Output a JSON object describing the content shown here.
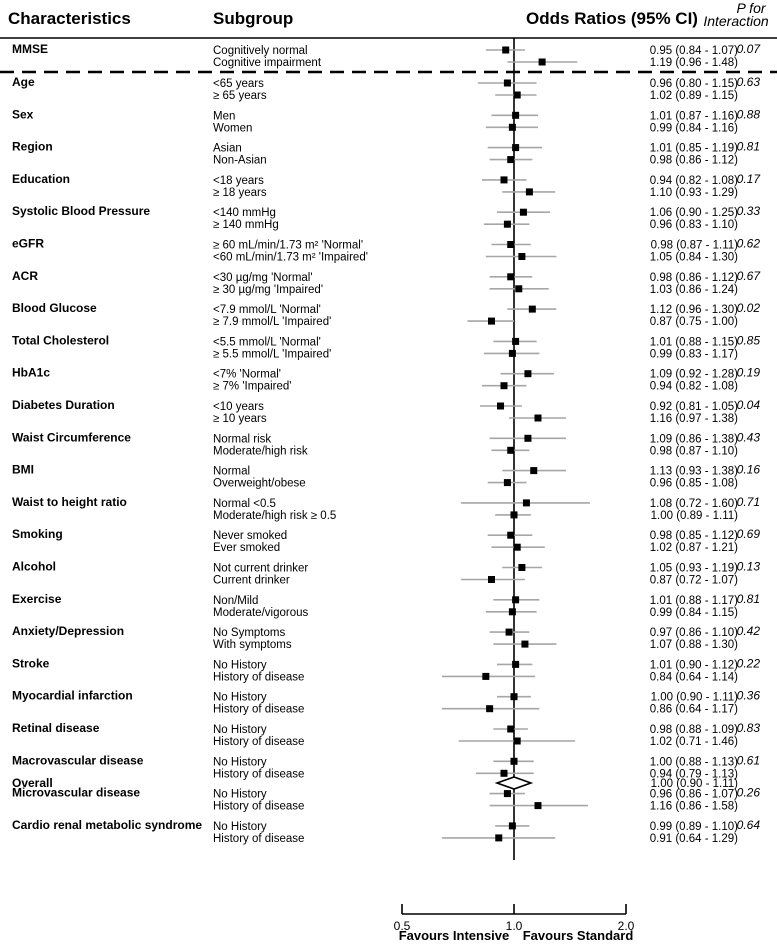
{
  "header": {
    "characteristics": "Characteristics",
    "subgroup": "Subgroup",
    "odds_ratios": "Odds Ratios (95% CI)",
    "p_for": "P for",
    "interaction": "Interaction"
  },
  "chart_data": {
    "type": "forest",
    "title": "",
    "xlabel_left": "Favours Intensive",
    "xlabel_right": "Favours Standard",
    "xlim": [
      0.5,
      2.0
    ],
    "xticks": [
      {
        "value": 0.5,
        "label": "0.5"
      },
      {
        "value": 1.0,
        "label": "1.0"
      },
      {
        "value": 2.0,
        "label": "2.0"
      }
    ],
    "reference_line": 1.0,
    "point_color": "#000000",
    "ci_color": "#a6a6a6",
    "groups": [
      {
        "name": "MMSE",
        "p": "0.07",
        "rows": [
          {
            "label": "Cognitively normal",
            "or": 0.95,
            "lo": 0.84,
            "hi": 1.07,
            "text": "0.95 (0.84 - 1.07)"
          },
          {
            "label": "Cognitive impairment",
            "or": 1.19,
            "lo": 0.96,
            "hi": 1.48,
            "text": "1.19 (0.96 - 1.48)"
          }
        ]
      },
      {
        "name": "Age",
        "p": "0.63",
        "rows": [
          {
            "label": "<65 years",
            "or": 0.96,
            "lo": 0.8,
            "hi": 1.15,
            "text": "0.96 (0.80 - 1.15)"
          },
          {
            "label": "≥ 65 years",
            "or": 1.02,
            "lo": 0.89,
            "hi": 1.15,
            "text": "1.02 (0.89 - 1.15)"
          }
        ]
      },
      {
        "name": "Sex",
        "p": "0.88",
        "rows": [
          {
            "label": "Men",
            "or": 1.01,
            "lo": 0.87,
            "hi": 1.16,
            "text": "1.01 (0.87 - 1.16)"
          },
          {
            "label": "Women",
            "or": 0.99,
            "lo": 0.84,
            "hi": 1.16,
            "text": "0.99 (0.84 - 1.16)"
          }
        ]
      },
      {
        "name": "Region",
        "p": "0.81",
        "rows": [
          {
            "label": "Asian",
            "or": 1.01,
            "lo": 0.85,
            "hi": 1.19,
            "text": "1.01 (0.85 - 1.19)"
          },
          {
            "label": "Non-Asian",
            "or": 0.98,
            "lo": 0.86,
            "hi": 1.12,
            "text": "0.98 (0.86 - 1.12)"
          }
        ]
      },
      {
        "name": "Education",
        "p": "0.17",
        "rows": [
          {
            "label": "<18 years",
            "or": 0.94,
            "lo": 0.82,
            "hi": 1.08,
            "text": "0.94 (0.82 - 1.08)"
          },
          {
            "label": "≥ 18 years",
            "or": 1.1,
            "lo": 0.93,
            "hi": 1.29,
            "text": "1.10 (0.93 - 1.29)"
          }
        ]
      },
      {
        "name": "Systolic Blood Pressure",
        "p": "0.33",
        "rows": [
          {
            "label": "<140 mmHg",
            "or": 1.06,
            "lo": 0.9,
            "hi": 1.25,
            "text": "1.06 (0.90 - 1.25)"
          },
          {
            "label": "≥ 140 mmHg",
            "or": 0.96,
            "lo": 0.83,
            "hi": 1.1,
            "text": "0.96 (0.83 - 1.10)"
          }
        ]
      },
      {
        "name": "eGFR",
        "p": "0.62",
        "rows": [
          {
            "label": "≥ 60 mL/min/1.73 m² 'Normal'",
            "or": 0.98,
            "lo": 0.87,
            "hi": 1.11,
            "text": "0.98 (0.87 - 1.11)"
          },
          {
            "label": "<60 mL/min/1.73 m² 'Impaired'",
            "or": 1.05,
            "lo": 0.84,
            "hi": 1.3,
            "text": "1.05 (0.84 - 1.30)"
          }
        ]
      },
      {
        "name": "ACR",
        "p": "0.67",
        "rows": [
          {
            "label": "<30 µg/mg 'Normal'",
            "or": 0.98,
            "lo": 0.86,
            "hi": 1.12,
            "text": "0.98 (0.86 - 1.12)"
          },
          {
            "label": "≥ 30 µg/mg 'Impaired'",
            "or": 1.03,
            "lo": 0.86,
            "hi": 1.24,
            "text": "1.03 (0.86 - 1.24)"
          }
        ]
      },
      {
        "name": "Blood Glucose",
        "p": "0.02",
        "rows": [
          {
            "label": "<7.9 mmol/L 'Normal'",
            "or": 1.12,
            "lo": 0.96,
            "hi": 1.3,
            "text": "1.12 (0.96 - 1.30)"
          },
          {
            "label": "≥ 7.9 mmol/L 'Impaired'",
            "or": 0.87,
            "lo": 0.75,
            "hi": 1.0,
            "text": "0.87 (0.75 - 1.00)"
          }
        ]
      },
      {
        "name": "Total Cholesterol",
        "p": "0.85",
        "rows": [
          {
            "label": "<5.5 mmol/L 'Normal'",
            "or": 1.01,
            "lo": 0.88,
            "hi": 1.15,
            "text": "1.01 (0.88 - 1.15)"
          },
          {
            "label": "≥ 5.5 mmol/L 'Impaired'",
            "or": 0.99,
            "lo": 0.83,
            "hi": 1.17,
            "text": "0.99 (0.83 - 1.17)"
          }
        ]
      },
      {
        "name": "HbA1c",
        "p": "0.19",
        "rows": [
          {
            "label": "<7% 'Normal'",
            "or": 1.09,
            "lo": 0.92,
            "hi": 1.28,
            "text": "1.09 (0.92 - 1.28)"
          },
          {
            "label": "≥ 7% 'Impaired'",
            "or": 0.94,
            "lo": 0.82,
            "hi": 1.08,
            "text": "0.94 (0.82 - 1.08)"
          }
        ]
      },
      {
        "name": "Diabetes Duration",
        "p": "0.04",
        "rows": [
          {
            "label": "<10 years",
            "or": 0.92,
            "lo": 0.81,
            "hi": 1.05,
            "text": "0.92 (0.81 - 1.05)"
          },
          {
            "label": "≥ 10 years",
            "or": 1.16,
            "lo": 0.97,
            "hi": 1.38,
            "text": "1.16 (0.97 - 1.38)"
          }
        ]
      },
      {
        "name": "Waist Circumference",
        "p": "0.43",
        "rows": [
          {
            "label": "Normal risk",
            "or": 1.09,
            "lo": 0.86,
            "hi": 1.38,
            "text": "1.09 (0.86 - 1.38)"
          },
          {
            "label": "Moderate/high risk",
            "or": 0.98,
            "lo": 0.87,
            "hi": 1.1,
            "text": "0.98 (0.87 - 1.10)"
          }
        ]
      },
      {
        "name": "BMI",
        "p": "0.16",
        "rows": [
          {
            "label": "Normal",
            "or": 1.13,
            "lo": 0.93,
            "hi": 1.38,
            "text": "1.13 (0.93 - 1.38)"
          },
          {
            "label": "Overweight/obese",
            "or": 0.96,
            "lo": 0.85,
            "hi": 1.08,
            "text": "0.96 (0.85 - 1.08)"
          }
        ]
      },
      {
        "name": "Waist to height ratio",
        "p": "0.71",
        "rows": [
          {
            "label": "Normal <0.5",
            "or": 1.08,
            "lo": 0.72,
            "hi": 1.6,
            "text": "1.08 (0.72 - 1.60)"
          },
          {
            "label": "Moderate/high risk ≥ 0.5",
            "or": 1.0,
            "lo": 0.89,
            "hi": 1.11,
            "text": "1.00 (0.89 - 1.11)"
          }
        ]
      },
      {
        "name": "Smoking",
        "p": "0.69",
        "rows": [
          {
            "label": "Never smoked",
            "or": 0.98,
            "lo": 0.85,
            "hi": 1.12,
            "text": "0.98 (0.85 - 1.12)"
          },
          {
            "label": "Ever smoked",
            "or": 1.02,
            "lo": 0.87,
            "hi": 1.21,
            "text": "1.02 (0.87 - 1.21)"
          }
        ]
      },
      {
        "name": "Alcohol",
        "p": "0.13",
        "rows": [
          {
            "label": "Not current drinker",
            "or": 1.05,
            "lo": 0.93,
            "hi": 1.19,
            "text": "1.05 (0.93 - 1.19)"
          },
          {
            "label": "Current drinker",
            "or": 0.87,
            "lo": 0.72,
            "hi": 1.07,
            "text": "0.87 (0.72 - 1.07)"
          }
        ]
      },
      {
        "name": "Exercise",
        "p": "0.81",
        "rows": [
          {
            "label": "Non/Mild",
            "or": 1.01,
            "lo": 0.88,
            "hi": 1.17,
            "text": "1.01 (0.88 - 1.17)"
          },
          {
            "label": "Moderate/vigorous",
            "or": 0.99,
            "lo": 0.84,
            "hi": 1.15,
            "text": "0.99 (0.84 - 1.15)"
          }
        ]
      },
      {
        "name": "Anxiety/Depression",
        "p": "0.42",
        "rows": [
          {
            "label": "No Symptoms",
            "or": 0.97,
            "lo": 0.86,
            "hi": 1.1,
            "text": "0.97 (0.86 - 1.10)"
          },
          {
            "label": "With symptoms",
            "or": 1.07,
            "lo": 0.88,
            "hi": 1.3,
            "text": "1.07 (0.88 - 1.30)"
          }
        ]
      },
      {
        "name": "Stroke",
        "p": "0.22",
        "rows": [
          {
            "label": "No History",
            "or": 1.01,
            "lo": 0.9,
            "hi": 1.12,
            "text": "1.01 (0.90 - 1.12)"
          },
          {
            "label": "History of disease",
            "or": 0.84,
            "lo": 0.64,
            "hi": 1.14,
            "text": "0.84 (0.64 - 1.14)"
          }
        ]
      },
      {
        "name": "Myocardial infarction",
        "p": "0.36",
        "rows": [
          {
            "label": "No History",
            "or": 1.0,
            "lo": 0.9,
            "hi": 1.11,
            "text": "1.00 (0.90 - 1.11)"
          },
          {
            "label": "History of disease",
            "or": 0.86,
            "lo": 0.64,
            "hi": 1.17,
            "text": "0.86 (0.64 - 1.17)"
          }
        ]
      },
      {
        "name": "Retinal disease",
        "p": "0.83",
        "rows": [
          {
            "label": "No History",
            "or": 0.98,
            "lo": 0.88,
            "hi": 1.09,
            "text": "0.98 (0.88 - 1.09)"
          },
          {
            "label": "History of disease",
            "or": 1.02,
            "lo": 0.71,
            "hi": 1.46,
            "text": "1.02 (0.71 - 1.46)"
          }
        ]
      },
      {
        "name": "Macrovascular disease",
        "p": "0.61",
        "rows": [
          {
            "label": "No History",
            "or": 1.0,
            "lo": 0.88,
            "hi": 1.13,
            "text": "1.00 (0.88 - 1.13)"
          },
          {
            "label": "History of disease",
            "or": 0.94,
            "lo": 0.79,
            "hi": 1.13,
            "text": "0.94 (0.79 - 1.13)"
          }
        ]
      },
      {
        "name": "Microvascular disease",
        "p": "0.26",
        "rows": [
          {
            "label": "No History",
            "or": 0.96,
            "lo": 0.86,
            "hi": 1.07,
            "text": "0.96 (0.86 - 1.07)"
          },
          {
            "label": "History of disease",
            "or": 1.16,
            "lo": 0.86,
            "hi": 1.58,
            "text": "1.16 (0.86 - 1.58)"
          }
        ]
      },
      {
        "name": "Cardio renal metabolic syndrome",
        "p": "0.64",
        "rows": [
          {
            "label": "No History",
            "or": 0.99,
            "lo": 0.89,
            "hi": 1.1,
            "text": "0.99 (0.89 - 1.10)"
          },
          {
            "label": "History of disease",
            "or": 0.91,
            "lo": 0.64,
            "hi": 1.29,
            "text": "0.91 (0.64 - 1.29)"
          }
        ]
      }
    ],
    "overall": {
      "name": "Overall",
      "or": 1.0,
      "lo": 0.9,
      "hi": 1.11,
      "text": "1.00 (0.90 - 1.11)"
    }
  }
}
